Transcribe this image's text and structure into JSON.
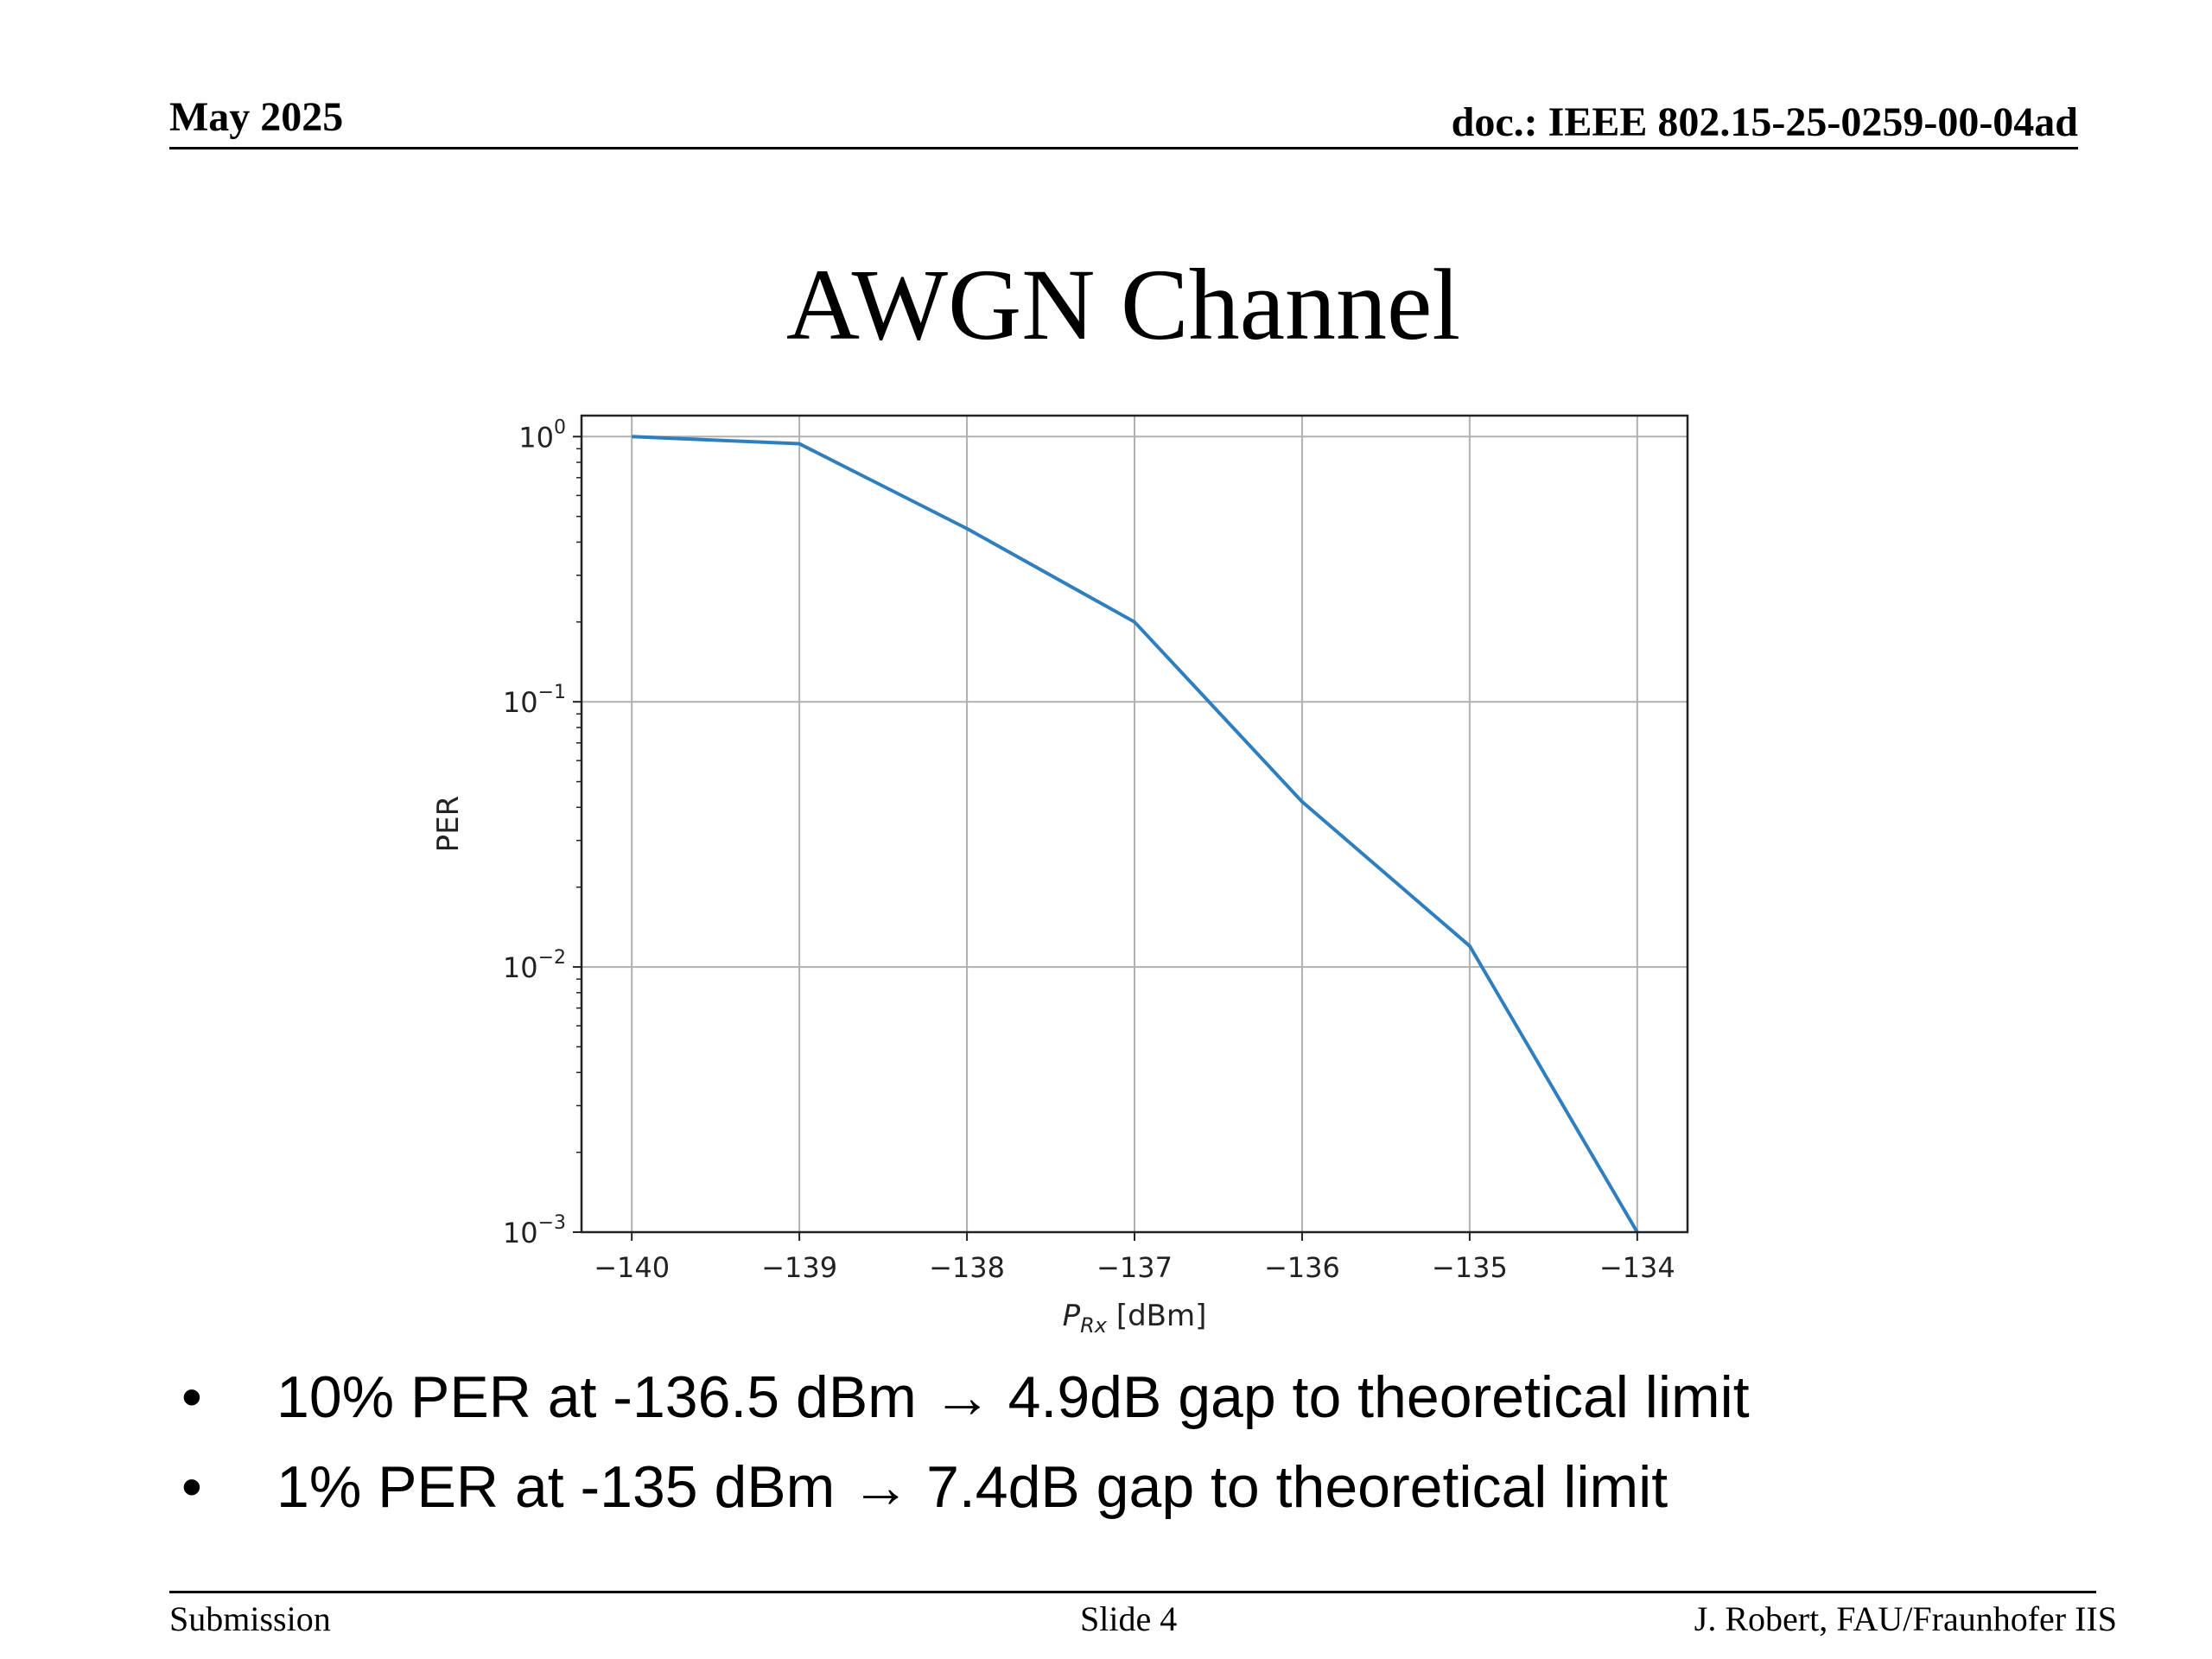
{
  "header": {
    "date": "May 2025",
    "doc": "doc.: IEEE 802.15-25-0259-00-04ad"
  },
  "slide": {
    "title": "AWGN Channel"
  },
  "bullets": [
    {
      "text": "10% PER at -136.5 dBm → 4.9dB gap to theoretical limit"
    },
    {
      "text": "1% PER at -135 dBm → 7.4dB gap to theoretical limit"
    }
  ],
  "footer": {
    "left": "Submission",
    "center": "Slide 4",
    "right": "J. Robert, FAU/Fraunhofer IIS"
  },
  "chart_data": {
    "type": "line",
    "x": [
      -140,
      -139,
      -138,
      -137,
      -136,
      -135,
      -134
    ],
    "series": [
      {
        "values": [
          1.0,
          0.94,
          0.45,
          0.2,
          0.042,
          0.012,
          0.001
        ],
        "color": "#2f7fbf"
      }
    ],
    "xlabel": "P_Rx [dBm]",
    "xlabel_main": "P",
    "xlabel_sub": "Rx",
    "xlabel_unit": " [dBm]",
    "ylabel": "PER",
    "xticks": [
      "−140",
      "−139",
      "−138",
      "−137",
      "−136",
      "−135",
      "−134"
    ],
    "yticks": [
      {
        "base": "10",
        "exp": "0"
      },
      {
        "base": "10",
        "exp": "−1"
      },
      {
        "base": "10",
        "exp": "−2"
      },
      {
        "base": "10",
        "exp": "−3"
      }
    ],
    "xlim": [
      -140.3,
      -133.7
    ],
    "ylim": [
      0.001,
      1.2
    ],
    "yscale": "log",
    "grid": true
  }
}
